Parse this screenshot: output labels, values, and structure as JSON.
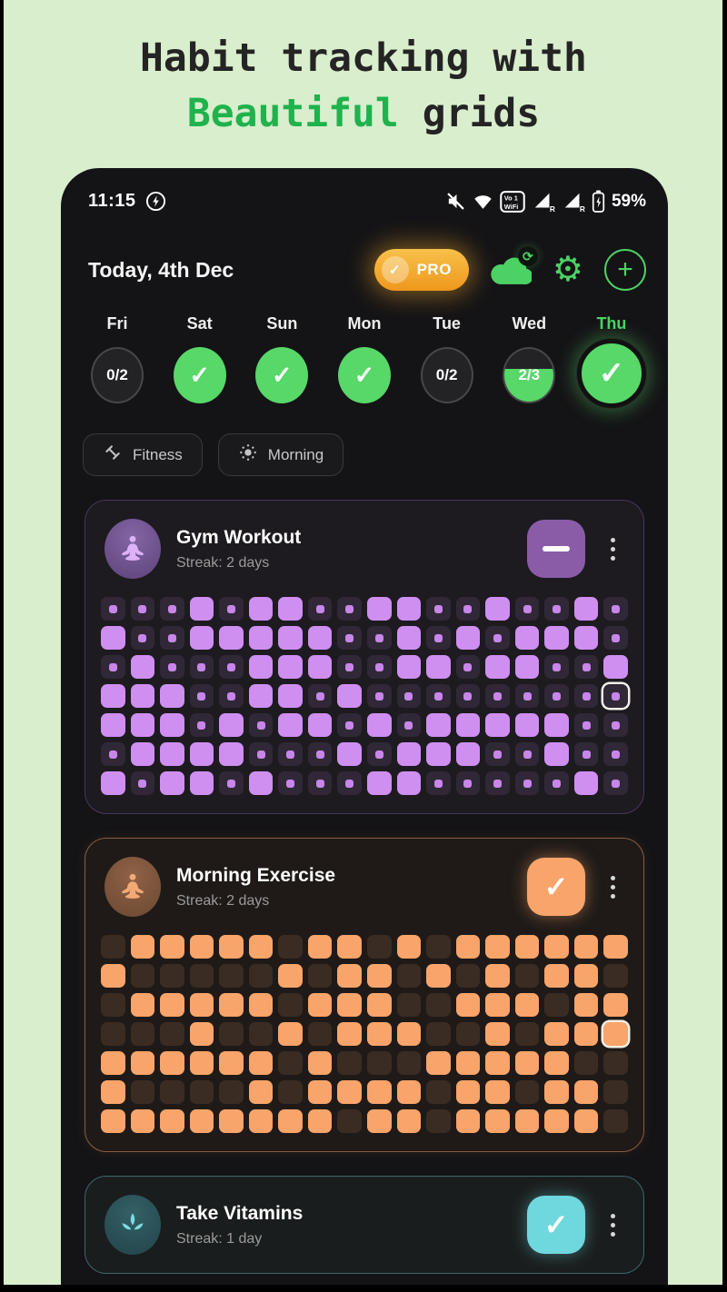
{
  "title": {
    "line1": "Habit tracking with",
    "highlight": "Beautiful",
    "rest": " grids"
  },
  "status_bar": {
    "time": "11:15",
    "battery": "59%",
    "roaming_letter": "R",
    "vowifi": {
      "line1": "Vo 1",
      "line2": "WiFi"
    },
    "icon_names": [
      "power-saver-icon",
      "volume-muted-icon",
      "wifi-icon",
      "vowifi-badge-icon",
      "signal-roaming-icon",
      "signal-roaming-icon",
      "battery-charging-icon"
    ]
  },
  "app_header": {
    "date": "Today, 4th Dec",
    "pro_label": "PRO"
  },
  "icons": {
    "pro-check-icon": "✓",
    "sync-icon": "⟳",
    "gear-icon": "⚙",
    "plus-icon": "+",
    "check-icon": "✓",
    "minus-icon": "−",
    "menu-dots-icon": "⋮"
  },
  "colors": {
    "page_green": "#d9eecd",
    "headline_green": "#1fb24d",
    "ui_green": "#57d869",
    "pro_orange": "#f0a21f"
  },
  "week": {
    "days": [
      {
        "label": "Fri",
        "state": "count",
        "value": "0/2"
      },
      {
        "label": "Sat",
        "state": "done"
      },
      {
        "label": "Sun",
        "state": "done"
      },
      {
        "label": "Mon",
        "state": "done"
      },
      {
        "label": "Tue",
        "state": "count",
        "value": "0/2"
      },
      {
        "label": "Wed",
        "state": "partial",
        "value": "2/3",
        "fill_percent": 62
      },
      {
        "label": "Thu",
        "state": "today-done",
        "is_today": true
      }
    ]
  },
  "filters": [
    {
      "label": "Fitness",
      "icon": "dumbbell-icon"
    },
    {
      "label": "Morning",
      "icon": "sun-icon"
    }
  ],
  "habits": [
    {
      "name": "Gym Workout",
      "streak": "Streak: 2 days",
      "action": "minus",
      "colors": {
        "bg": "#1d1a20",
        "border": "#49365c",
        "accent": "#cf8ff1",
        "cell_empty": "#302837",
        "dot": "#c886ea",
        "button": "#8a5ca8",
        "avatar": "#5d4379",
        "avatar_hi": "#8465a5",
        "icon": "#ddb2f9"
      },
      "grid": {
        "cell_style": "dot",
        "rows": [
          "000101100110010010",
          "100111110010101110",
          "010001110011011001",
          "11100110100000000T",
          "111010110101111100",
          "011110001011100100",
          "101101000110000010"
        ]
      }
    },
    {
      "name": "Morning Exercise",
      "streak": "Streak: 2 days",
      "action": "check",
      "colors": {
        "bg": "#1f1a17",
        "border": "#8a5c42",
        "accent": "#f9a46a",
        "cell_empty": "#3a2c23",
        "dot": "#f9a46a",
        "button": "#f9a46a",
        "avatar": "#6b4831",
        "avatar_hi": "#8f6246",
        "icon": "#f2a974"
      },
      "grid": {
        "cell_style": "plain",
        "rows": [
          "011111011010111111",
          "100000101101010110",
          "011111011100111011",
          "00010010111001011F",
          "111111010001111100",
          "100001011110110110",
          "111111110110111110"
        ]
      }
    },
    {
      "name": "Take Vitamins",
      "streak": "Streak: 1 day",
      "action": "check",
      "colors": {
        "bg": "#1a1d1d",
        "border": "#3c686b",
        "accent": "#6fd8de",
        "cell_empty": "#243436",
        "dot": "#6fd8de",
        "button": "#6fd8de",
        "avatar": "#22444a",
        "avatar_hi": "#336066",
        "icon": "#7adce2"
      }
    }
  ]
}
